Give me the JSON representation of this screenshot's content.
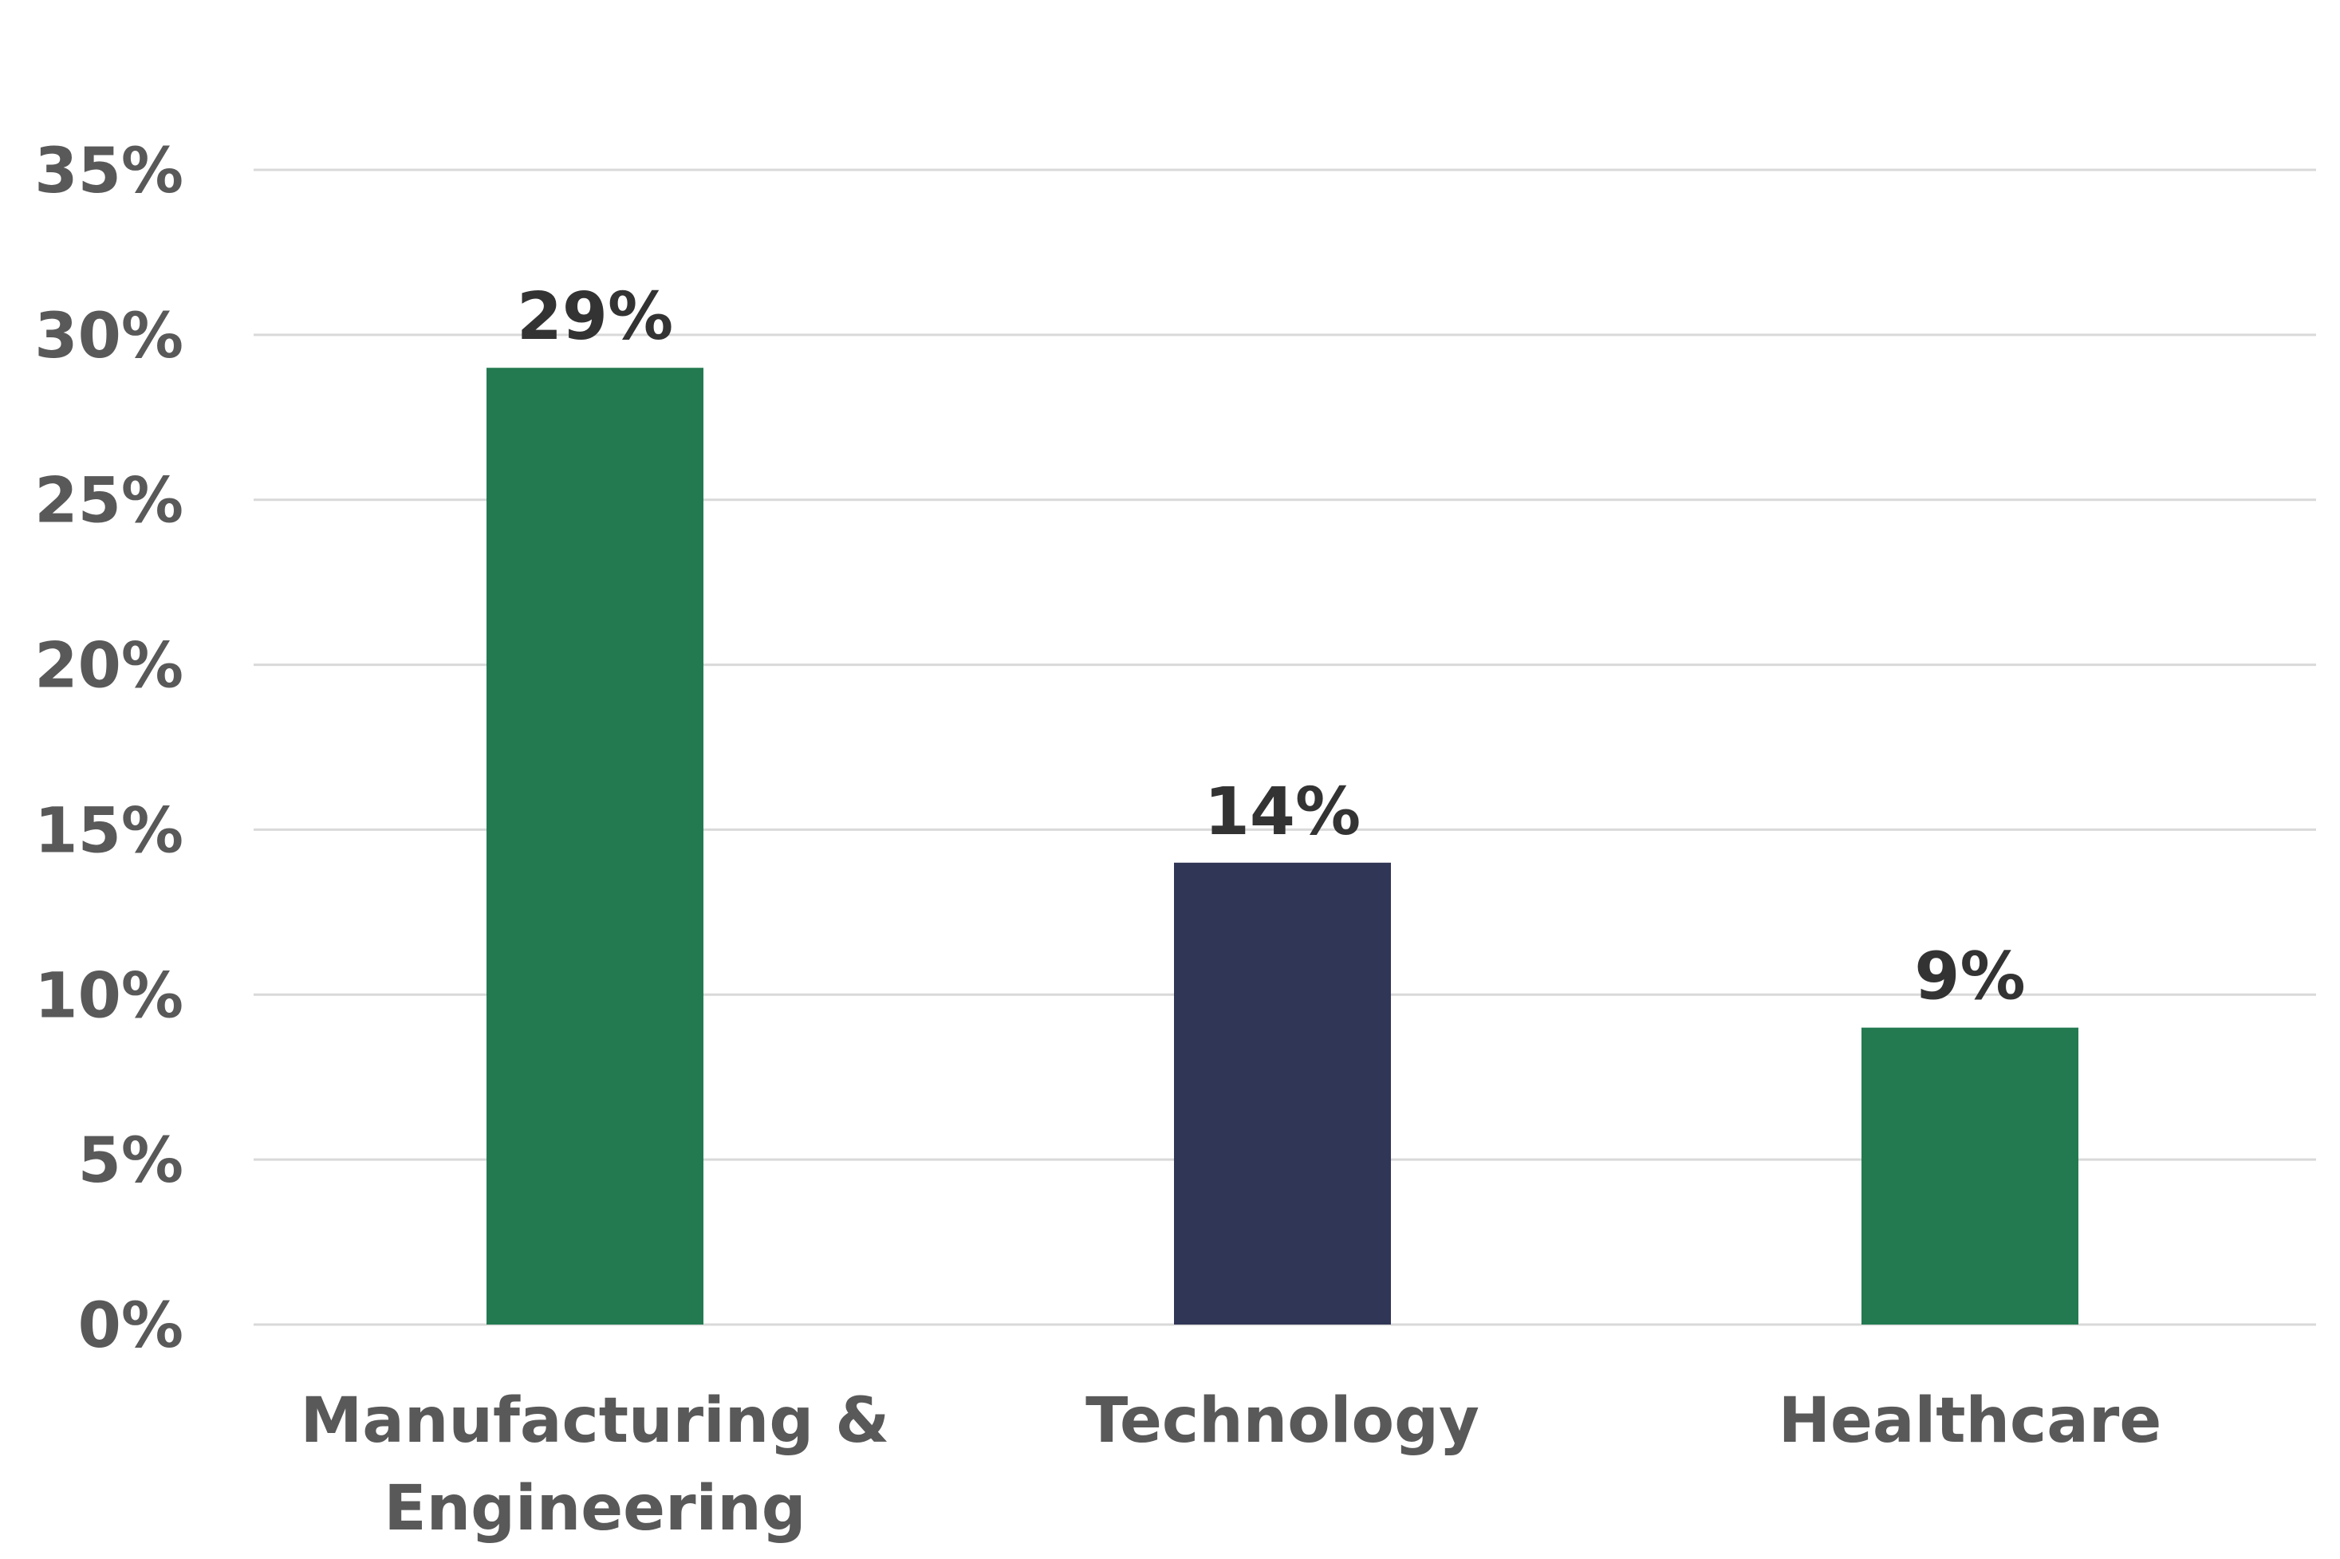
{
  "chart_data": {
    "type": "bar",
    "title": "",
    "xlabel": "",
    "ylabel": "",
    "categories": [
      [
        "Manufacturing &",
        "Engineering"
      ],
      [
        "Technology"
      ],
      [
        "Healthcare"
      ]
    ],
    "values": [
      29,
      14,
      9
    ],
    "data_labels": [
      "29%",
      "14%",
      "9%"
    ],
    "bar_colors": [
      "#237a51",
      "#303655",
      "#237a51"
    ],
    "ylim": [
      0,
      35
    ],
    "yticks": [
      0,
      5,
      10,
      15,
      20,
      25,
      30,
      35
    ],
    "ytick_labels": [
      "0%",
      "5%",
      "10%",
      "15%",
      "20%",
      "25%",
      "30%",
      "35%"
    ],
    "grid": true,
    "legend": "none"
  }
}
